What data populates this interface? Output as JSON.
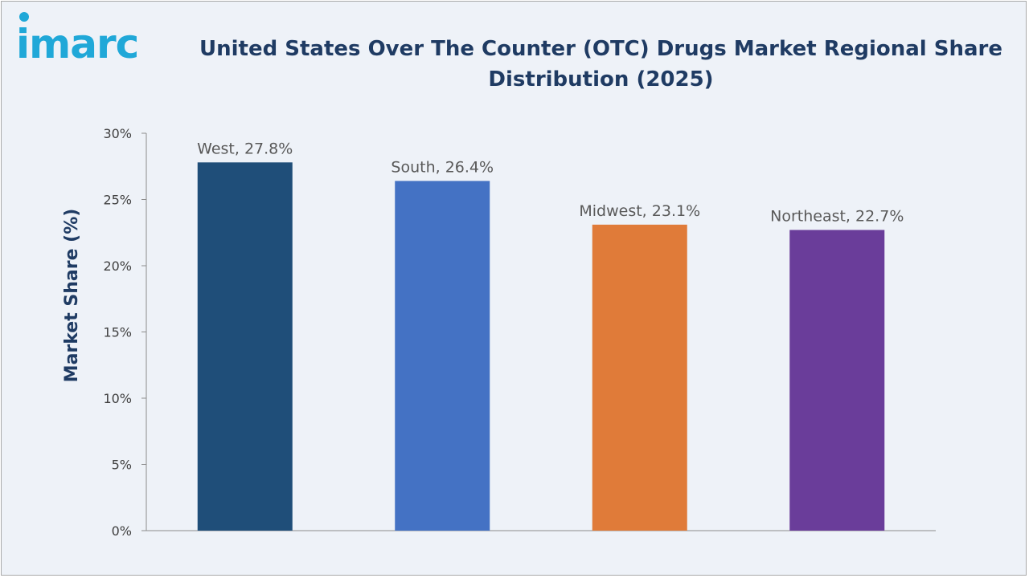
{
  "brand": {
    "logo_text": "imarc",
    "logo_color": "#20a8d8"
  },
  "chart_data": {
    "type": "bar",
    "title": "United States Over The Counter (OTC) Drugs Market Regional Share Distribution (2025)",
    "title_lines": [
      "United States Over The Counter (OTC) Drugs Market Regional Share",
      "Distribution (2025)"
    ],
    "xlabel": "",
    "ylabel": "Market Share (%)",
    "categories": [
      "West",
      "South",
      "Midwest",
      "Northeast"
    ],
    "values": [
      27.8,
      26.4,
      23.1,
      22.7
    ],
    "data_labels": [
      "West, 27.8%",
      "South, 26.4%",
      "Midwest, 23.1%",
      "Northeast, 22.7%"
    ],
    "colors": [
      "#1f4e79",
      "#4472c4",
      "#e07b39",
      "#6a3d9a"
    ],
    "ylim": [
      0,
      30
    ],
    "yticks": [
      0,
      5,
      10,
      15,
      20,
      25,
      30
    ],
    "ytick_labels": [
      "0%",
      "5%",
      "10%",
      "15%",
      "20%",
      "25%",
      "30%"
    ],
    "grid": false,
    "legend": "none"
  }
}
